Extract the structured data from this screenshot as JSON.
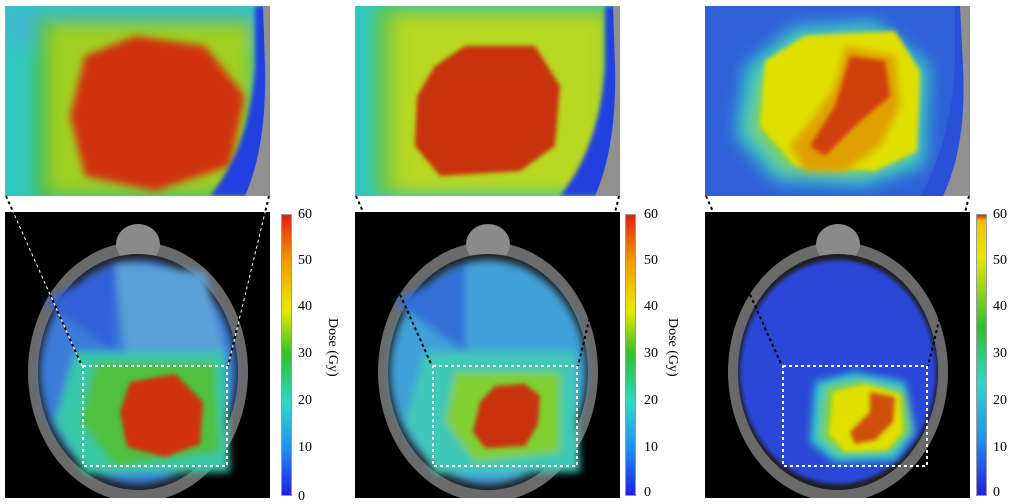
{
  "colorbar": {
    "label": "Dose (Gy)",
    "ticks": [
      "60",
      "50",
      "40",
      "30",
      "20",
      "10",
      "0"
    ],
    "colors": [
      "#e02010",
      "#f0a000",
      "#e8e800",
      "#30c030",
      "#30d8c8",
      "#2090f0",
      "#2020e0"
    ]
  },
  "panels": [
    {
      "name": "plan-a",
      "show_label": true
    },
    {
      "name": "plan-b",
      "show_label": true
    },
    {
      "name": "plan-c",
      "show_label": false
    }
  ]
}
